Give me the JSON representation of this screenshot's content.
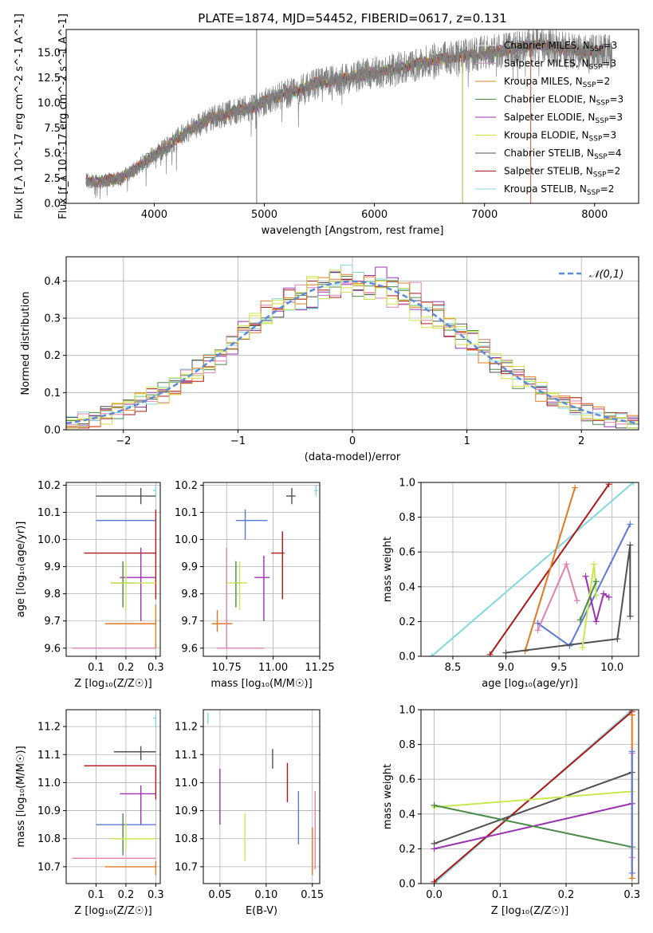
{
  "figure_title": "PLATE=1874, MJD=54452, FIBERID=0617, z=0.131",
  "colors": {
    "data": "#808080",
    "Chabrier MILES": "#e8e8e8",
    "Salpeter MILES": "#c8a0c8",
    "Kroupa MILES": "#d4841c",
    "Chabrier ELODIE": "#4a8a4a",
    "Salpeter ELODIE": "#9b30b0",
    "Kroupa ELODIE": "#d8e040",
    "Chabrier STELIB": "#505050",
    "Salpeter STELIB": "#b01818",
    "Kroupa STELIB": "#80d8dc",
    "normal": "#5b8bd8",
    "pink": "#e080b0",
    "blue": "#5878d8",
    "lime": "#c8e850",
    "orange": "#e07820"
  },
  "chart_data": [
    {
      "id": "spectrum",
      "type": "line",
      "title": "PLATE=1874, MJD=54452, FIBERID=0617, z=0.131",
      "xlabel": "wavelength [Angstrom, rest frame]",
      "ylabel": "Flux [f_λ 10^-17 erg cm^-2 s^-1 A^-1]",
      "xlim": [
        3200,
        8400
      ],
      "ylim": [
        0,
        17.3
      ],
      "xticks": [
        "4000",
        "5000",
        "6000",
        "7000",
        "8000"
      ],
      "yticks": [
        "0.0",
        "2.5",
        "5.0",
        "7.5",
        "10.0",
        "12.5",
        "15.0"
      ],
      "legend_position": "top-right",
      "legend": [
        {
          "name": "Chabrier MILES, N_SSP=3",
          "base": "Chabrier MILES, N",
          "sub": "SSP",
          "tail": "=3"
        },
        {
          "name": "Salpeter MILES, N_SSP=3",
          "base": "Salpeter MILES, N",
          "sub": "SSP",
          "tail": "=3"
        },
        {
          "name": "Kroupa MILES, N_SSP=2",
          "base": "Kroupa MILES, N",
          "sub": "SSP",
          "tail": "=2"
        },
        {
          "name": "Chabrier ELODIE, N_SSP=3",
          "base": "Chabrier ELODIE, N",
          "sub": "SSP",
          "tail": "=3"
        },
        {
          "name": "Salpeter ELODIE, N_SSP=3",
          "base": "Salpeter ELODIE, N",
          "sub": "SSP",
          "tail": "=3"
        },
        {
          "name": "Kroupa ELODIE, N_SSP=3",
          "base": "Kroupa ELODIE, N",
          "sub": "SSP",
          "tail": "=3"
        },
        {
          "name": "Chabrier STELIB, N_SSP=4",
          "base": "Chabrier STELIB, N",
          "sub": "SSP",
          "tail": "=4"
        },
        {
          "name": "Salpeter STELIB, N_SSP=2",
          "base": "Salpeter STELIB, N",
          "sub": "SSP",
          "tail": "=2"
        },
        {
          "name": "Kroupa STELIB, N_SSP=2",
          "base": "Kroupa STELIB, N",
          "sub": "SSP",
          "tail": "=2"
        }
      ],
      "continuum": [
        [
          3380,
          2.3
        ],
        [
          3500,
          2.1
        ],
        [
          3700,
          2.5
        ],
        [
          3800,
          3.2
        ],
        [
          3950,
          4.5
        ],
        [
          4100,
          5.5
        ],
        [
          4300,
          7.2
        ],
        [
          4500,
          8.4
        ],
        [
          4700,
          9.0
        ],
        [
          4900,
          9.6
        ],
        [
          5100,
          10.6
        ],
        [
          5300,
          11.2
        ],
        [
          5500,
          12.0
        ],
        [
          5700,
          12.3
        ],
        [
          5900,
          12.8
        ],
        [
          6100,
          13.2
        ],
        [
          6300,
          13.6
        ],
        [
          6500,
          14.2
        ],
        [
          6700,
          14.5
        ],
        [
          6900,
          14.8
        ],
        [
          7100,
          15.1
        ],
        [
          7300,
          15.5
        ],
        [
          7500,
          15.8
        ],
        [
          7700,
          15.4
        ],
        [
          7900,
          15.0
        ],
        [
          8100,
          15.2
        ]
      ],
      "spikes": [
        {
          "x": 4930,
          "low": 0,
          "high": 17.3
        },
        {
          "x": 6800,
          "low": 0,
          "high": 14.8
        },
        {
          "x": 7420,
          "low": 0,
          "high": 15.8
        }
      ]
    },
    {
      "id": "residuals",
      "type": "step",
      "xlabel": "(data-model)/error",
      "ylabel": "Normed distribution",
      "xlim": [
        -2.5,
        2.5
      ],
      "ylim": [
        0,
        0.465
      ],
      "xticks": [
        "−2",
        "−1",
        "0",
        "1",
        "2"
      ],
      "yticks": [
        "0.0",
        "0.1",
        "0.2",
        "0.3",
        "0.4"
      ],
      "legend": [
        {
          "name": "𝒩(0,1)"
        }
      ],
      "bin_width": 0.1,
      "normal": {
        "mu": 0,
        "sigma": 1
      }
    },
    {
      "id": "age_vs_Z",
      "type": "errorbar",
      "xlabel": "Z [log₁₀(Z/Z☉)]",
      "ylabel": "age  [log₁₀(age/yr)]",
      "xlim": [
        0.0,
        0.315
      ],
      "ylim": [
        9.57,
        10.21
      ],
      "xticks": [
        "0.1",
        "0.2",
        "0.3"
      ],
      "yticks": [
        "9.6",
        "9.7",
        "9.8",
        "9.9",
        "10.0",
        "10.1",
        "10.2"
      ],
      "points": [
        {
          "series": "Chabrier STELIB",
          "x": 0.25,
          "y": 10.16,
          "xerr": [
            0.1,
            0.3
          ],
          "yerr": [
            10.13,
            10.19
          ]
        },
        {
          "series": "Kroupa STELIB",
          "x": 0.3,
          "y": 10.18,
          "xerr": [
            0.29,
            0.3
          ],
          "yerr": [
            10.16,
            10.2
          ]
        },
        {
          "series": "blue",
          "x": 0.2,
          "y": 10.07,
          "xerr": [
            0.1,
            0.3
          ],
          "yerr": [
            10.07,
            10.07
          ]
        },
        {
          "series": "Salpeter STELIB",
          "x": 0.3,
          "y": 9.95,
          "xerr": [
            0.06,
            0.3
          ],
          "yerr": [
            9.78,
            10.11
          ]
        },
        {
          "series": "Salpeter ELODIE",
          "x": 0.25,
          "y": 9.86,
          "xerr": [
            0.18,
            0.3
          ],
          "yerr": [
            9.7,
            9.97
          ]
        },
        {
          "series": "Chabrier ELODIE",
          "x": 0.19,
          "y": 9.84,
          "xerr": [
            0.15,
            0.23
          ],
          "yerr": [
            9.75,
            9.92
          ]
        },
        {
          "series": "lime",
          "x": 0.2,
          "y": 9.84,
          "xerr": [
            0.15,
            0.3
          ],
          "yerr": [
            9.74,
            9.92
          ]
        },
        {
          "series": "orange",
          "x": 0.3,
          "y": 9.69,
          "xerr": [
            0.13,
            0.3
          ],
          "yerr": [
            9.6,
            9.76
          ]
        },
        {
          "series": "pink",
          "x": 0.2,
          "y": 9.6,
          "xerr": [
            0.02,
            0.3
          ],
          "yerr": [
            9.6,
            9.6
          ]
        }
      ]
    },
    {
      "id": "age_vs_mass",
      "type": "errorbar",
      "xlabel": "mass [log₁₀(M/M☉)]",
      "ylabel": "",
      "xlim": [
        10.625,
        11.25
      ],
      "ylim": [
        9.57,
        10.21
      ],
      "xticks": [
        "10.75",
        "11.00",
        "11.25"
      ],
      "yticks": [
        "9.6",
        "9.7",
        "9.8",
        "9.9",
        "10.0",
        "10.1",
        "10.2"
      ],
      "points": [
        {
          "series": "Chabrier STELIB",
          "x": 11.1,
          "y": 10.16,
          "xerr": [
            11.07,
            11.12
          ],
          "yerr": [
            10.13,
            10.19
          ]
        },
        {
          "series": "Kroupa STELIB",
          "x": 11.23,
          "y": 10.18,
          "xerr": [
            11.22,
            11.24
          ],
          "yerr": [
            10.16,
            10.2
          ]
        },
        {
          "series": "blue",
          "x": 10.85,
          "y": 10.07,
          "xerr": [
            10.8,
            10.97
          ],
          "yerr": [
            10.0,
            10.11
          ]
        },
        {
          "series": "Salpeter STELIB",
          "x": 11.05,
          "y": 9.95,
          "xerr": [
            10.99,
            11.06
          ],
          "yerr": [
            9.78,
            10.03
          ]
        },
        {
          "series": "Salpeter ELODIE",
          "x": 10.95,
          "y": 9.86,
          "xerr": [
            10.9,
            10.98
          ],
          "yerr": [
            9.7,
            9.94
          ]
        },
        {
          "series": "Chabrier ELODIE",
          "x": 10.8,
          "y": 9.84,
          "xerr": [
            10.79,
            10.83
          ],
          "yerr": [
            9.75,
            9.92
          ]
        },
        {
          "series": "lime",
          "x": 10.82,
          "y": 9.84,
          "xerr": [
            10.75,
            10.86
          ],
          "yerr": [
            9.74,
            9.92
          ]
        },
        {
          "series": "orange",
          "x": 10.7,
          "y": 9.69,
          "xerr": [
            10.67,
            10.78
          ],
          "yerr": [
            9.66,
            9.74
          ]
        },
        {
          "series": "pink",
          "x": 10.75,
          "y": 9.6,
          "xerr": [
            10.7,
            10.95
          ],
          "yerr": [
            9.6,
            9.97
          ]
        }
      ]
    },
    {
      "id": "mass_weight_vs_age",
      "type": "line",
      "xlabel": "age  [log₁₀(age/yr)]",
      "ylabel": "mass weight",
      "xlim": [
        8.2,
        10.25
      ],
      "ylim": [
        0,
        1
      ],
      "xticks": [
        "8.5",
        "9.0",
        "9.5",
        "10.0"
      ],
      "yticks": [
        "0.0",
        "0.2",
        "0.4",
        "0.6",
        "0.8",
        "1.0"
      ],
      "series": [
        {
          "name": "Kroupa STELIB",
          "x": [
            8.3,
            10.2
          ],
          "y": [
            0.0,
            1.0
          ]
        },
        {
          "name": "Salpeter STELIB",
          "x": [
            8.85,
            9.97
          ],
          "y": [
            0.01,
            0.99
          ]
        },
        {
          "name": "orange",
          "x": [
            9.18,
            9.65
          ],
          "y": [
            0.03,
            0.97
          ]
        },
        {
          "name": "blue",
          "x": [
            9.3,
            9.6,
            10.17
          ],
          "y": [
            0.19,
            0.06,
            0.76
          ]
        },
        {
          "name": "Chabrier STELIB",
          "x": [
            9.0,
            10.05,
            10.17,
            10.17
          ],
          "y": [
            0.02,
            0.1,
            0.64,
            0.23
          ]
        },
        {
          "name": "pink",
          "x": [
            9.3,
            9.57,
            9.67
          ],
          "y": [
            0.15,
            0.53,
            0.32
          ]
        },
        {
          "name": "Salpeter ELODIE",
          "x": [
            9.75,
            9.85,
            9.92,
            9.97
          ],
          "y": [
            0.46,
            0.2,
            0.36,
            0.34
          ]
        },
        {
          "name": "lime",
          "x": [
            9.72,
            9.83,
            9.85
          ],
          "y": [
            0.05,
            0.53,
            0.35
          ]
        },
        {
          "name": "Chabrier ELODIE",
          "x": [
            9.7,
            9.85
          ],
          "y": [
            0.21,
            0.43
          ]
        }
      ]
    },
    {
      "id": "mass_vs_Z",
      "type": "errorbar",
      "xlabel": "Z [log₁₀(Z/Z☉)]",
      "ylabel": "mass [log₁₀(M/M☉)]",
      "xlim": [
        0.0,
        0.315
      ],
      "ylim": [
        10.64,
        11.26
      ],
      "xticks": [
        "0.1",
        "0.2",
        "0.3"
      ],
      "yticks": [
        "10.7",
        "10.8",
        "10.9",
        "11.0",
        "11.1",
        "11.2"
      ],
      "points": [
        {
          "series": "Kroupa STELIB",
          "x": 0.3,
          "y": 11.23,
          "xerr": [
            0.29,
            0.3
          ],
          "yerr": [
            11.2,
            11.24
          ]
        },
        {
          "series": "Chabrier STELIB",
          "x": 0.25,
          "y": 11.11,
          "xerr": [
            0.16,
            0.3
          ],
          "yerr": [
            11.08,
            11.13
          ]
        },
        {
          "series": "Salpeter STELIB",
          "x": 0.3,
          "y": 11.06,
          "xerr": [
            0.06,
            0.3
          ],
          "yerr": [
            10.94,
            11.06
          ]
        },
        {
          "series": "Salpeter ELODIE",
          "x": 0.25,
          "y": 10.96,
          "xerr": [
            0.18,
            0.3
          ],
          "yerr": [
            10.85,
            10.99
          ]
        },
        {
          "series": "blue",
          "x": 0.2,
          "y": 10.85,
          "xerr": [
            0.1,
            0.3
          ],
          "yerr": [
            10.85,
            10.85
          ]
        },
        {
          "series": "Chabrier ELODIE",
          "x": 0.19,
          "y": 10.8,
          "xerr": [
            0.15,
            0.23
          ],
          "yerr": [
            10.74,
            10.89
          ]
        },
        {
          "series": "lime",
          "x": 0.2,
          "y": 10.8,
          "xerr": [
            0.15,
            0.3
          ],
          "yerr": [
            10.76,
            10.86
          ]
        },
        {
          "series": "pink",
          "x": 0.2,
          "y": 10.73,
          "xerr": [
            0.02,
            0.3
          ],
          "yerr": [
            10.73,
            10.73
          ]
        },
        {
          "series": "orange",
          "x": 0.3,
          "y": 10.7,
          "xerr": [
            0.13,
            0.3
          ],
          "yerr": [
            10.67,
            10.72
          ]
        }
      ]
    },
    {
      "id": "mass_vs_EBV",
      "type": "errorbar",
      "xlabel": "E(B-V)",
      "ylabel": "",
      "xlim": [
        0.032,
        0.158
      ],
      "ylim": [
        10.64,
        11.26
      ],
      "xticks": [
        "0.05",
        "0.10",
        "0.15"
      ],
      "yticks": [
        "10.7",
        "10.8",
        "10.9",
        "11.0",
        "11.1",
        "11.2"
      ],
      "points": [
        {
          "series": "Kroupa STELIB",
          "x": 0.037,
          "y": 11.23,
          "xerr": [
            0.037,
            0.037
          ],
          "yerr": [
            11.21,
            11.25
          ]
        },
        {
          "series": "Chabrier STELIB",
          "x": 0.107,
          "y": 11.08,
          "xerr": [
            0.107,
            0.107
          ],
          "yerr": [
            11.05,
            11.12
          ]
        },
        {
          "series": "Salpeter STELIB",
          "x": 0.123,
          "y": 10.99,
          "xerr": [
            0.123,
            0.123
          ],
          "yerr": [
            10.93,
            11.07
          ]
        },
        {
          "series": "Salpeter ELODIE",
          "x": 0.05,
          "y": 10.95,
          "xerr": [
            0.05,
            0.05
          ],
          "yerr": [
            10.85,
            11.05
          ]
        },
        {
          "series": "blue",
          "x": 0.135,
          "y": 10.88,
          "xerr": [
            0.135,
            0.135
          ],
          "yerr": [
            10.78,
            10.97
          ]
        },
        {
          "series": "lime",
          "x": 0.077,
          "y": 10.8,
          "xerr": [
            0.077,
            0.077
          ],
          "yerr": [
            10.72,
            10.89
          ]
        },
        {
          "series": "pink",
          "x": 0.153,
          "y": 10.85,
          "xerr": [
            0.153,
            0.153
          ],
          "yerr": [
            10.69,
            10.97
          ]
        },
        {
          "series": "orange",
          "x": 0.15,
          "y": 10.7,
          "xerr": [
            0.15,
            0.15
          ],
          "yerr": [
            10.67,
            10.84
          ]
        }
      ]
    },
    {
      "id": "mass_weight_vs_Z",
      "type": "line",
      "xlabel": "Z [log₁₀(Z/Z☉)]",
      "ylabel": "mass weight",
      "xlim": [
        -0.02,
        0.31
      ],
      "ylim": [
        0,
        1
      ],
      "xticks": [
        "0.0",
        "0.1",
        "0.2",
        "0.3"
      ],
      "yticks": [
        "0.0",
        "0.2",
        "0.4",
        "0.6",
        "0.8",
        "1.0"
      ],
      "series": [
        {
          "name": "Kroupa STELIB",
          "x": [
            0.0,
            0.3
          ],
          "y": [
            0.0,
            1.0
          ]
        },
        {
          "name": "Salpeter STELIB",
          "x": [
            0.0,
            0.3
          ],
          "y": [
            0.01,
            0.99
          ]
        },
        {
          "name": "orange",
          "x": [
            0.3,
            0.3
          ],
          "y": [
            0.03,
            0.97
          ]
        },
        {
          "name": "Chabrier STELIB",
          "x": [
            0.0,
            0.3
          ],
          "y": [
            0.23,
            0.64
          ]
        },
        {
          "name": "lime",
          "x": [
            0.0,
            0.3
          ],
          "y": [
            0.44,
            0.53
          ]
        },
        {
          "name": "Salpeter ELODIE",
          "x": [
            0.0,
            0.3
          ],
          "y": [
            0.2,
            0.46
          ]
        },
        {
          "name": "Chabrier ELODIE",
          "x": [
            0.0,
            0.3
          ],
          "y": [
            0.45,
            0.21
          ]
        },
        {
          "name": "pink",
          "x": [
            0.3,
            0.3
          ],
          "y": [
            0.15,
            0.75
          ]
        },
        {
          "name": "blue",
          "x": [
            0.3,
            0.3
          ],
          "y": [
            0.06,
            0.76
          ]
        }
      ]
    }
  ]
}
